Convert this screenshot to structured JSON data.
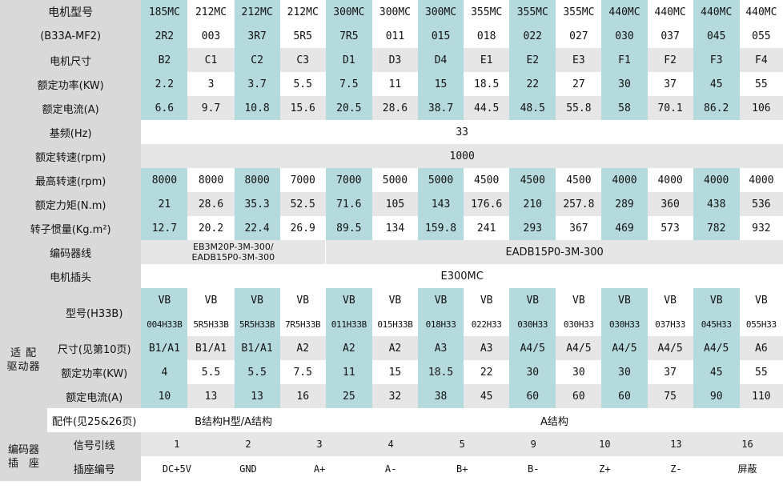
{
  "motor_header": {
    "label_line1": "电机型号",
    "label_line2": "(B33A-MF2)",
    "series": [
      "185MC",
      "212MC",
      "212MC",
      "212MC",
      "300MC",
      "300MC",
      "300MC",
      "355MC",
      "355MC",
      "355MC",
      "440MC",
      "440MC",
      "440MC",
      "440MC"
    ],
    "codes": [
      "2R2",
      "003",
      "3R7",
      "5R5",
      "7R5",
      "011",
      "015",
      "018",
      "022",
      "027",
      "030",
      "037",
      "045",
      "055"
    ]
  },
  "motor_rows": [
    {
      "label": "电机尺寸",
      "values": [
        "B2",
        "C1",
        "C2",
        "C3",
        "D1",
        "D3",
        "D4",
        "E1",
        "E2",
        "E3",
        "F1",
        "F2",
        "F3",
        "F4"
      ]
    },
    {
      "label": "额定功率(KW)",
      "values": [
        "2.2",
        "3",
        "3.7",
        "5.5",
        "7.5",
        "11",
        "15",
        "18.5",
        "22",
        "27",
        "30",
        "37",
        "45",
        "55"
      ]
    },
    {
      "label": "额定电流(A)",
      "values": [
        "6.6",
        "9.7",
        "10.8",
        "15.6",
        "20.5",
        "28.6",
        "38.7",
        "44.5",
        "48.5",
        "55.8",
        "58",
        "70.1",
        "86.2",
        "106"
      ]
    }
  ],
  "base_freq": {
    "label": "基频(Hz)",
    "value": "33"
  },
  "rated_speed": {
    "label": "额定转速(rpm)",
    "value": "1000"
  },
  "motor_rows2": [
    {
      "label": "最高转速(rpm)",
      "values": [
        "8000",
        "8000",
        "8000",
        "7000",
        "7000",
        "5000",
        "5000",
        "4500",
        "4500",
        "4500",
        "4000",
        "4000",
        "4000",
        "4000"
      ]
    },
    {
      "label": "额定力矩(N.m)",
      "values": [
        "21",
        "28.6",
        "35.3",
        "52.5",
        "71.6",
        "105",
        "143",
        "176.6",
        "210",
        "257.8",
        "289",
        "360",
        "438",
        "536"
      ]
    },
    {
      "label": "转子惯量(Kg.m²)",
      "values": [
        "12.7",
        "20.2",
        "22.4",
        "26.9",
        "89.5",
        "134",
        "159.8",
        "241",
        "293",
        "367",
        "469",
        "573",
        "782",
        "932"
      ]
    }
  ],
  "encoder_cable": {
    "label": "编码器线",
    "left": "EB3M20P-3M-300/\nEADB15P0-3M-300",
    "right": "EADB15P0-3M-300"
  },
  "motor_plug": {
    "label": "电机插头",
    "value": "E300MC"
  },
  "driver": {
    "group_label": "适 配\n驱动器",
    "model_label": "型号(H33B)",
    "model_prefix": [
      "VB",
      "VB",
      "VB",
      "VB",
      "VB",
      "VB",
      "VB",
      "VB",
      "VB",
      "VB",
      "VB",
      "VB",
      "VB",
      "VB"
    ],
    "model_codes": [
      "004H33B",
      "5R5H33B",
      "5R5H33B",
      "7R5H33B",
      "011H33B",
      "015H33B",
      "018H33",
      "022H33",
      "030H33",
      "030H33",
      "030H33",
      "037H33",
      "045H33",
      "055H33"
    ],
    "rows": [
      {
        "label": "尺寸(见第10页)",
        "values": [
          "B1/A1",
          "B1/A1",
          "B1/A1",
          "A2",
          "A2",
          "A2",
          "A3",
          "A3",
          "A4/5",
          "A4/5",
          "A4/5",
          "A4/5",
          "A4/5",
          "A6"
        ]
      },
      {
        "label": "额定功率(KW)",
        "values": [
          "4",
          "5.5",
          "5.5",
          "7.5",
          "11",
          "15",
          "18.5",
          "22",
          "30",
          "30",
          "30",
          "37",
          "45",
          "55"
        ]
      },
      {
        "label": "额定电流(A)",
        "values": [
          "10",
          "13",
          "13",
          "16",
          "25",
          "32",
          "38",
          "45",
          "60",
          "60",
          "60",
          "75",
          "90",
          "110"
        ]
      }
    ],
    "accessory_label": "配件(见25&26页)",
    "accessory_left": "B结构H型/A结构",
    "accessory_right": "A结构"
  },
  "encoder_socket": {
    "group_label": "编码器\n插　座",
    "signal_label": "信号引线",
    "signal_values": [
      "1",
      "2",
      "3",
      "4",
      "5",
      "9",
      "10",
      "13",
      "16"
    ],
    "pin_label": "插座编号",
    "pin_values": [
      "DC+5V",
      "GND",
      "A+",
      "A-",
      "B+",
      "B-",
      "Z+",
      "Z-",
      "屏蔽"
    ]
  }
}
